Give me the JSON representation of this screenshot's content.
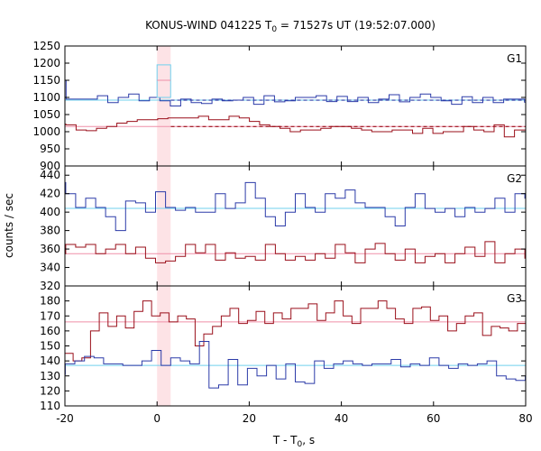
{
  "chart_data": {
    "type": "line",
    "title": "KONUS-WIND 041225 T",
    "title_sub": "0",
    "title_rest": " = 71527s UT (19:52:07.000)",
    "xlabel": "T - T",
    "xlabel_sub": "0",
    "xlabel_rest": ", s",
    "ylabel": "counts / sec",
    "xlim": [
      -20,
      80
    ],
    "x_ticks": [
      -20,
      0,
      20,
      40,
      60,
      80
    ],
    "x_tick_labels": [
      "-20",
      "0",
      "20",
      "40",
      "60",
      "80"
    ],
    "highlight_interval": [
      0,
      2.944
    ],
    "bin_width": 2.944,
    "bins_start": -21.9,
    "colors": {
      "blue": "#2b3aa8",
      "red": "#9a0f1a",
      "light_blue": "#6fd0ee",
      "pink": "#ef8fa8",
      "highlight": "#fde3e6"
    },
    "panels": [
      {
        "label": "G1",
        "ylim": [
          900,
          1250
        ],
        "y_ticks": [
          900,
          950,
          1000,
          1050,
          1100,
          1150,
          1200,
          1250
        ],
        "y_tick_labels": [
          "900",
          "950",
          "1000",
          "1050",
          "1100",
          "1150",
          "1200",
          "1250"
        ],
        "series": [
          {
            "color": "blue",
            "background": 1092,
            "values": [
              1150,
              1095,
              1095,
              1095,
              1105,
              1085,
              1100,
              1110,
              1090,
              1100,
              1090,
              1075,
              1095,
              1085,
              1082,
              1095,
              1090,
              1092,
              1100,
              1080,
              1105,
              1087,
              1090,
              1100,
              1100,
              1105,
              1088,
              1103,
              1088,
              1100,
              1085,
              1095,
              1108,
              1087,
              1100,
              1110,
              1100,
              1090,
              1080,
              1102,
              1085,
              1100,
              1085,
              1095,
              1095,
              1086
            ]
          },
          {
            "color": "red",
            "background": 1015,
            "values": [
              1022,
              1020,
              1005,
              1003,
              1010,
              1015,
              1025,
              1030,
              1035,
              1035,
              1038,
              1040,
              1040,
              1040,
              1045,
              1035,
              1035,
              1045,
              1040,
              1030,
              1020,
              1015,
              1010,
              1000,
              1005,
              1005,
              1010,
              1015,
              1015,
              1010,
              1005,
              1000,
              1000,
              1005,
              1005,
              995,
              1010,
              995,
              1000,
              1000,
              1015,
              1005,
              1000,
              1020,
              985,
              1005,
              1005
            ]
          }
        ],
        "highlight_values": [
          1195,
          1150
        ]
      },
      {
        "label": "G2",
        "ylim": [
          320,
          450
        ],
        "y_ticks": [
          320,
          340,
          360,
          380,
          400,
          420,
          440
        ],
        "y_tick_labels": [
          "320",
          "340",
          "360",
          "380",
          "400",
          "420",
          "440"
        ],
        "series": [
          {
            "color": "blue",
            "background": 404,
            "values": [
              432,
              420,
              405,
              415,
              405,
              395,
              380,
              412,
              410,
              400,
              422,
              405,
              402,
              405,
              400,
              400,
              420,
              404,
              410,
              432,
              415,
              395,
              385,
              400,
              420,
              405,
              400,
              420,
              415,
              424,
              410,
              405,
              405,
              395,
              385,
              405,
              420,
              404,
              400,
              404,
              395,
              405,
              400,
              404,
              415,
              400,
              420,
              415
            ]
          },
          {
            "color": "red",
            "background": 355,
            "values": [
              355,
              365,
              362,
              365,
              355,
              360,
              365,
              355,
              362,
              350,
              345,
              347,
              352,
              365,
              356,
              365,
              348,
              356,
              350,
              352,
              348,
              365,
              355,
              348,
              352,
              348,
              355,
              350,
              365,
              356,
              345,
              360,
              366,
              355,
              348,
              360,
              345,
              352,
              355,
              345,
              355,
              362,
              352,
              368,
              345,
              355,
              360,
              350
            ]
          }
        ]
      },
      {
        "label": "G3",
        "ylim": [
          110,
          190
        ],
        "y_ticks": [
          110,
          120,
          130,
          140,
          150,
          160,
          170,
          180
        ],
        "y_tick_labels": [
          "110",
          "120",
          "130",
          "140",
          "150",
          "160",
          "170",
          "180"
        ],
        "series": [
          {
            "color": "red",
            "background": 166,
            "values": [
              172,
              145,
              140,
              142,
              160,
              172,
              163,
              170,
              162,
              173,
              180,
              170,
              172,
              166,
              170,
              168,
              150,
              158,
              163,
              170,
              175,
              165,
              167,
              173,
              165,
              172,
              168,
              175,
              175,
              178,
              167,
              172,
              180,
              170,
              165,
              175,
              175,
              180,
              175,
              168,
              165,
              175,
              176,
              167,
              170,
              160,
              165,
              170,
              172,
              157,
              163,
              162,
              160,
              165,
              172
            ]
          },
          {
            "color": "blue",
            "background": 137,
            "values": [
              131,
              138,
              140,
              143,
              142,
              138,
              138,
              137,
              137,
              140,
              147,
              137,
              142,
              140,
              138,
              153,
              122,
              124,
              141,
              124,
              135,
              130,
              137,
              128,
              138,
              126,
              125,
              140,
              135,
              138,
              140,
              138,
              137,
              138,
              138,
              141,
              136,
              138,
              137,
              142,
              137,
              135,
              138,
              137,
              138,
              140,
              130,
              128,
              127,
              130
            ]
          }
        ]
      }
    ]
  }
}
